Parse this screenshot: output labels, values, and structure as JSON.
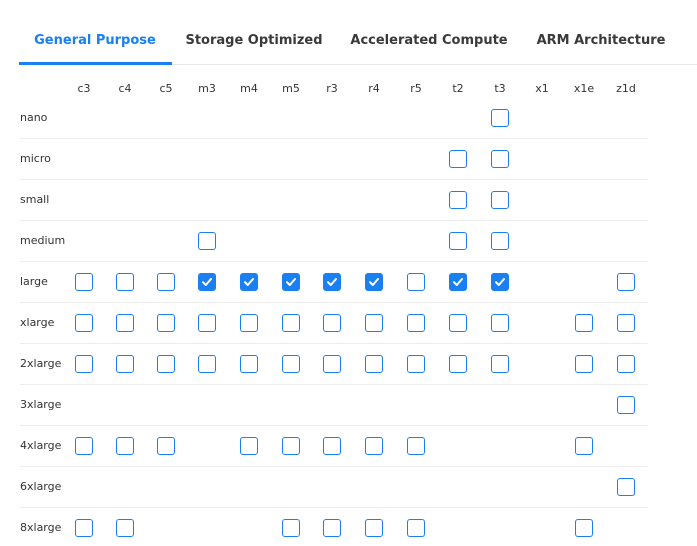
{
  "tabs": [
    {
      "label": "General Purpose",
      "active": true
    },
    {
      "label": "Storage Optimized",
      "active": false
    },
    {
      "label": "Accelerated Compute",
      "active": false
    },
    {
      "label": "ARM Architecture",
      "active": false
    }
  ],
  "accent": "#1a7ff0",
  "columns": [
    "c3",
    "c4",
    "c5",
    "m3",
    "m4",
    "m5",
    "r3",
    "r4",
    "r5",
    "t2",
    "t3",
    "x1",
    "x1e",
    "z1d"
  ],
  "rows": [
    {
      "label": "nano",
      "cells": [
        null,
        null,
        null,
        null,
        null,
        null,
        null,
        null,
        null,
        null,
        false,
        null,
        null,
        null
      ]
    },
    {
      "label": "micro",
      "cells": [
        null,
        null,
        null,
        null,
        null,
        null,
        null,
        null,
        null,
        false,
        false,
        null,
        null,
        null
      ]
    },
    {
      "label": "small",
      "cells": [
        null,
        null,
        null,
        null,
        null,
        null,
        null,
        null,
        null,
        false,
        false,
        null,
        null,
        null
      ]
    },
    {
      "label": "medium",
      "cells": [
        null,
        null,
        null,
        false,
        null,
        null,
        null,
        null,
        null,
        false,
        false,
        null,
        null,
        null
      ]
    },
    {
      "label": "large",
      "cells": [
        false,
        false,
        false,
        true,
        true,
        true,
        true,
        true,
        false,
        true,
        true,
        null,
        null,
        false
      ]
    },
    {
      "label": "xlarge",
      "cells": [
        false,
        false,
        false,
        false,
        false,
        false,
        false,
        false,
        false,
        false,
        false,
        null,
        false,
        false
      ]
    },
    {
      "label": "2xlarge",
      "cells": [
        false,
        false,
        false,
        false,
        false,
        false,
        false,
        false,
        false,
        false,
        false,
        null,
        false,
        false
      ]
    },
    {
      "label": "3xlarge",
      "cells": [
        null,
        null,
        null,
        null,
        null,
        null,
        null,
        null,
        null,
        null,
        null,
        null,
        null,
        false
      ]
    },
    {
      "label": "4xlarge",
      "cells": [
        false,
        false,
        false,
        null,
        false,
        false,
        false,
        false,
        false,
        null,
        null,
        null,
        false,
        null
      ]
    },
    {
      "label": "6xlarge",
      "cells": [
        null,
        null,
        null,
        null,
        null,
        null,
        null,
        null,
        null,
        null,
        null,
        null,
        null,
        false
      ]
    },
    {
      "label": "8xlarge",
      "cells": [
        false,
        false,
        null,
        null,
        null,
        false,
        false,
        false,
        false,
        null,
        null,
        null,
        false,
        null
      ]
    }
  ]
}
